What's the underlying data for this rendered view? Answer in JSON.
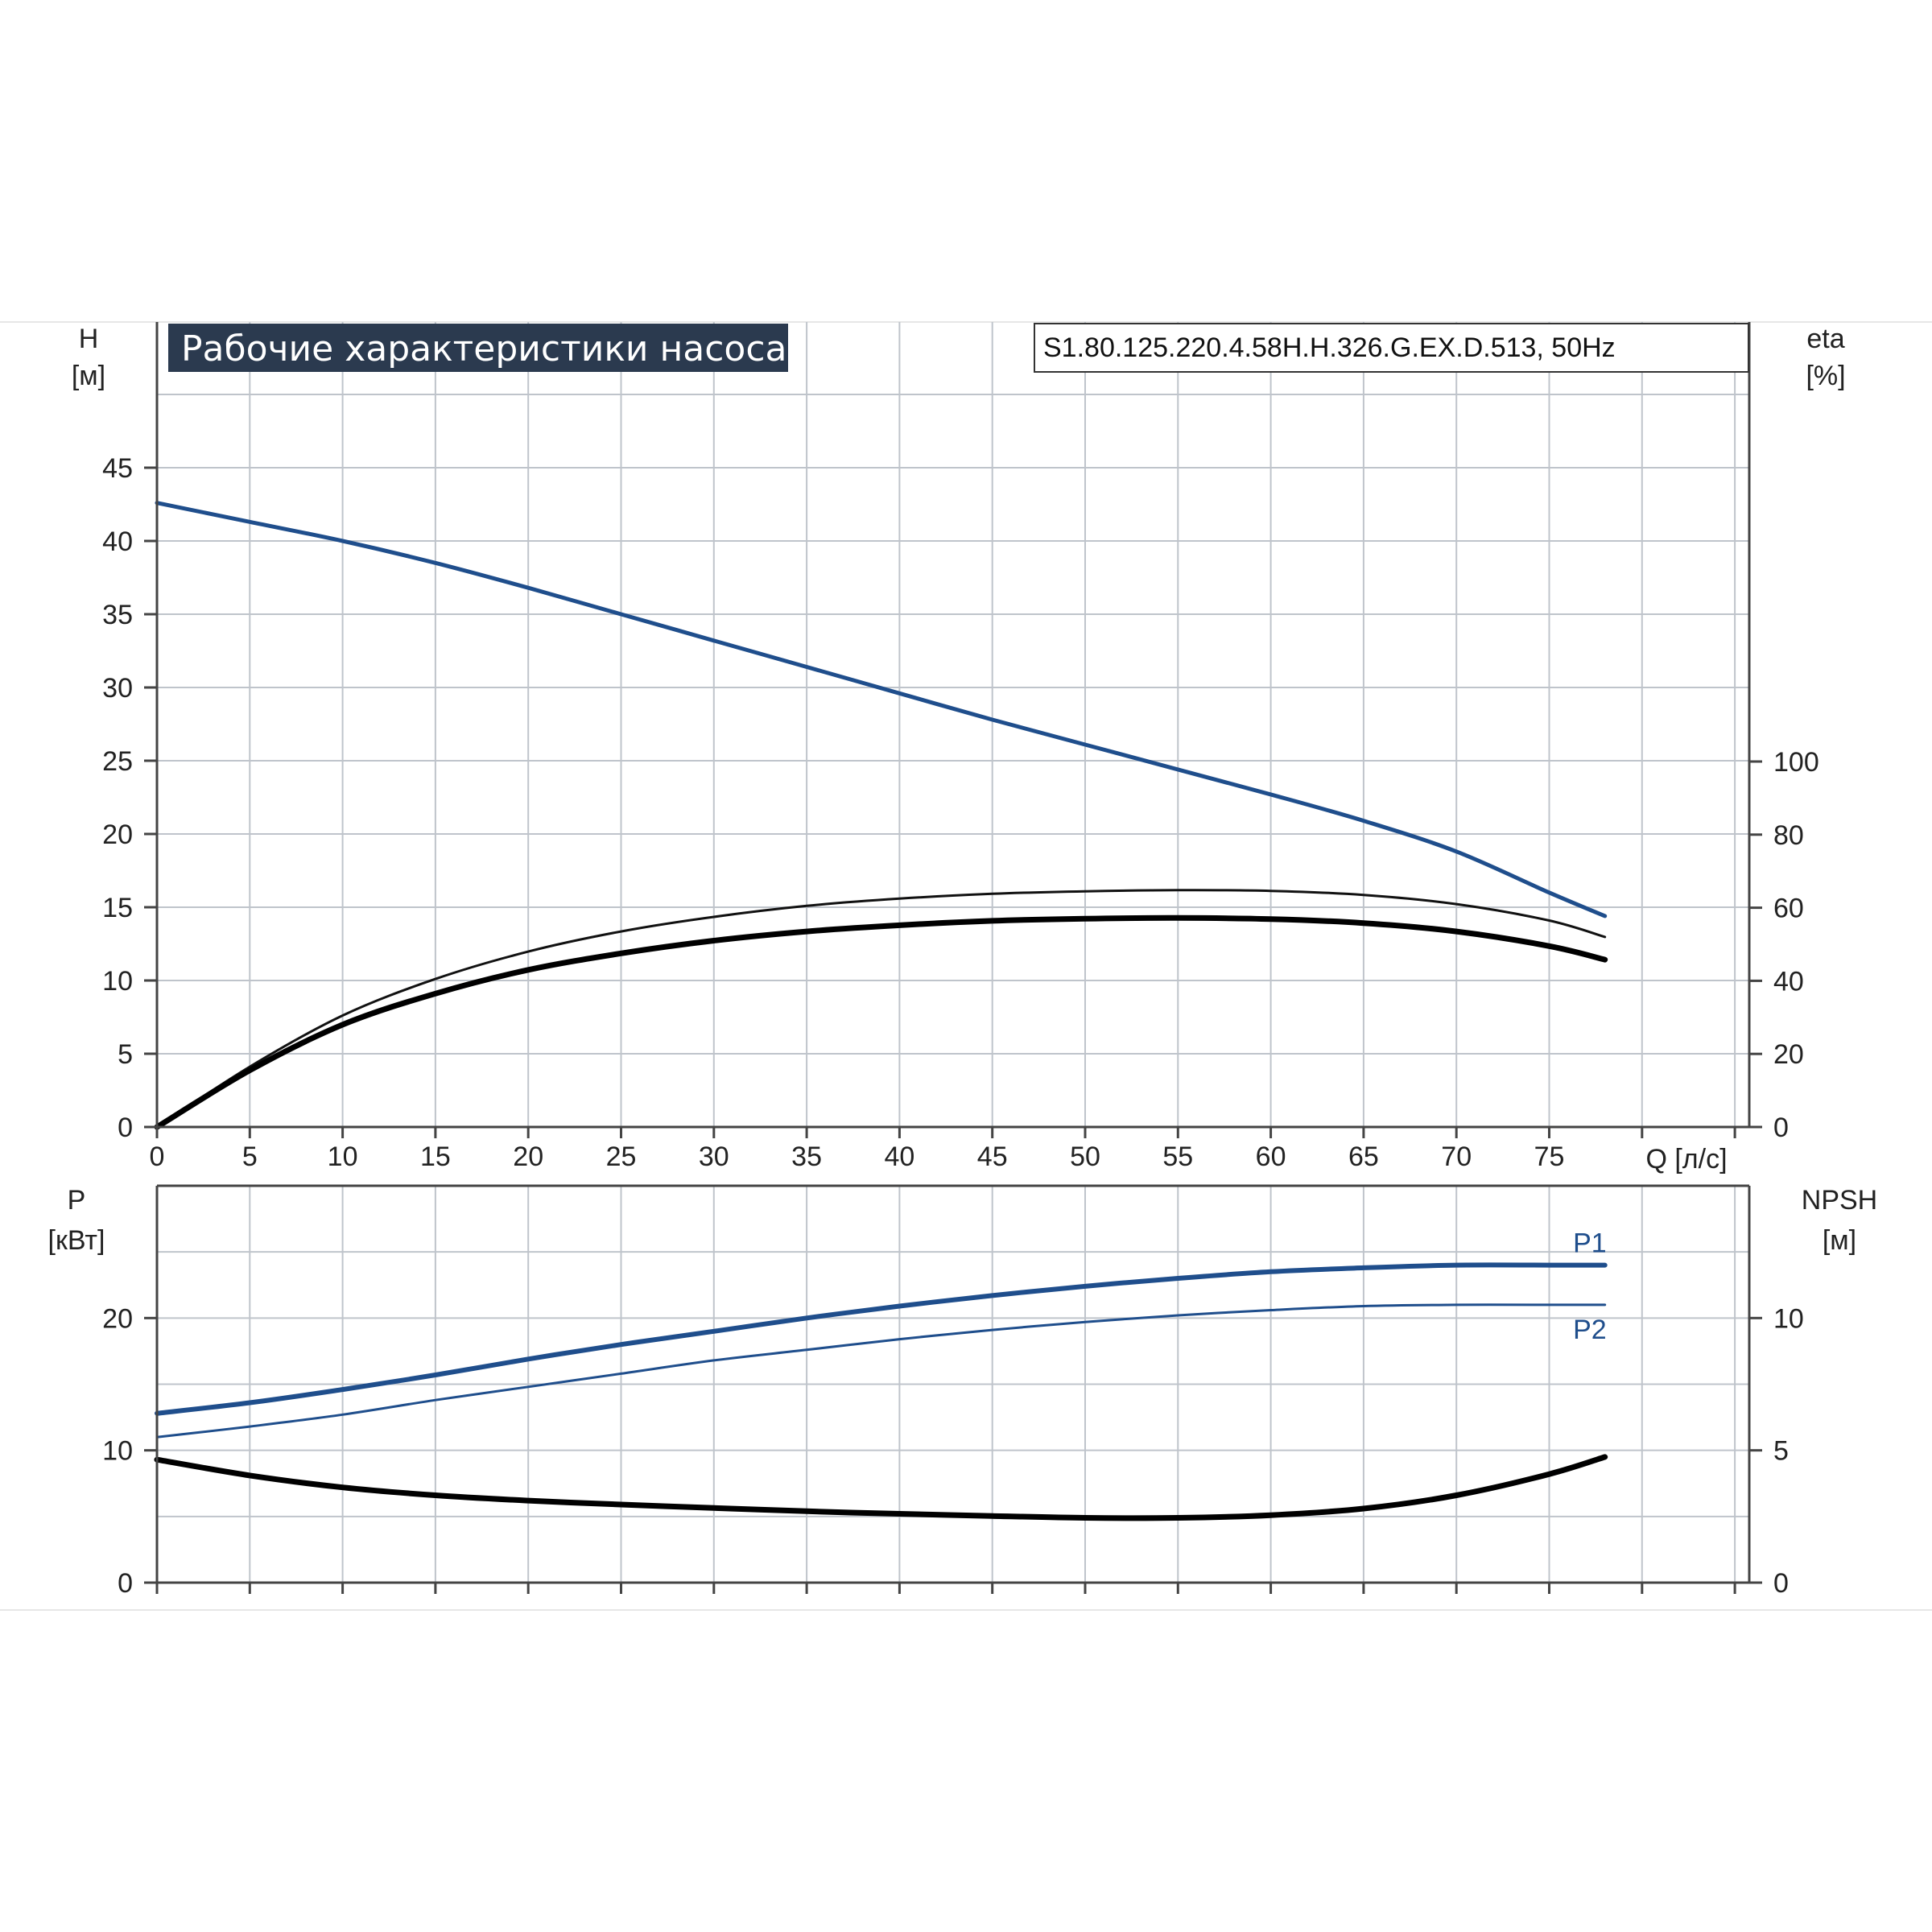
{
  "chart_data": [
    {
      "type": "line",
      "title": "Рабочие характеристики насоса",
      "model": "S1.80.125.220.4.58H.H.326.G.EX.D.513, 50Hz",
      "xlabel": "Q [л/с]",
      "ylabel_left": [
        "H",
        "[м]"
      ],
      "ylabel_right": [
        "eta",
        "[%]"
      ],
      "xlim": [
        0,
        85
      ],
      "xticks": [
        0,
        5,
        10,
        15,
        20,
        25,
        30,
        35,
        40,
        45,
        50,
        55,
        60,
        65,
        70,
        75
      ],
      "ylim_left": [
        0,
        50
      ],
      "yticks_left": [
        0,
        5,
        10,
        15,
        20,
        25,
        30,
        35,
        40,
        45
      ],
      "ylim_right": [
        0,
        100
      ],
      "yticks_right": [
        0,
        20,
        40,
        60,
        80,
        100
      ],
      "grid": true,
      "series": [
        {
          "axis": "left",
          "color": "#1f4e8c",
          "width": 5,
          "x": [
            0,
            5,
            10,
            15,
            20,
            25,
            30,
            35,
            40,
            45,
            50,
            55,
            60,
            65,
            70,
            75,
            78
          ],
          "y": [
            42.6,
            41.3,
            40.0,
            38.5,
            36.8,
            35.0,
            33.2,
            31.4,
            29.6,
            27.8,
            26.1,
            24.4,
            22.7,
            20.9,
            18.8,
            16.0,
            14.4
          ]
        },
        {
          "axis": "right",
          "color": "#111111",
          "width": 3,
          "x": [
            0,
            5,
            10,
            15,
            20,
            25,
            30,
            35,
            40,
            45,
            50,
            55,
            60,
            65,
            70,
            75,
            78
          ],
          "y": [
            0,
            16.5,
            30.5,
            40.5,
            48.0,
            53.5,
            57.5,
            60.5,
            62.5,
            63.8,
            64.5,
            64.8,
            64.6,
            63.5,
            61.0,
            56.5,
            52.0
          ]
        },
        {
          "axis": "right",
          "color": "#000000",
          "width": 7,
          "x": [
            0,
            5,
            10,
            15,
            20,
            25,
            30,
            35,
            40,
            45,
            50,
            55,
            60,
            65,
            70,
            75,
            78
          ],
          "y": [
            0,
            15.5,
            28.0,
            36.5,
            43.0,
            47.5,
            51.0,
            53.5,
            55.2,
            56.4,
            57.0,
            57.2,
            56.9,
            55.8,
            53.5,
            49.5,
            45.8
          ]
        }
      ]
    },
    {
      "type": "line",
      "xlim": [
        0,
        85
      ],
      "ylabel_left": [
        "P",
        "[кВт]"
      ],
      "ylabel_right": [
        "NPSH",
        "[м]"
      ],
      "ylim_left": [
        0,
        30
      ],
      "yticks_left": [
        0,
        10,
        20
      ],
      "ylim_right": [
        0,
        15
      ],
      "yticks_right": [
        0,
        5,
        10
      ],
      "grid": true,
      "series": [
        {
          "name": "P1",
          "axis": "left",
          "color": "#1f4e8c",
          "width": 6,
          "x": [
            0,
            5,
            10,
            15,
            20,
            25,
            30,
            35,
            40,
            45,
            50,
            55,
            60,
            65,
            70,
            75,
            78
          ],
          "y": [
            12.8,
            13.6,
            14.6,
            15.7,
            16.9,
            18.0,
            19.0,
            20.0,
            20.9,
            21.7,
            22.4,
            23.0,
            23.5,
            23.8,
            24.0,
            24.0,
            24.0
          ]
        },
        {
          "name": "P2",
          "axis": "left",
          "color": "#1f4e8c",
          "width": 3,
          "x": [
            0,
            5,
            10,
            15,
            20,
            25,
            30,
            35,
            40,
            45,
            50,
            55,
            60,
            65,
            70,
            75,
            78
          ],
          "y": [
            11.0,
            11.8,
            12.7,
            13.8,
            14.8,
            15.8,
            16.8,
            17.6,
            18.4,
            19.1,
            19.7,
            20.2,
            20.6,
            20.9,
            21.0,
            21.0,
            21.0
          ]
        },
        {
          "axis": "right",
          "color": "#000000",
          "width": 7,
          "x": [
            0,
            5,
            10,
            15,
            20,
            25,
            30,
            35,
            40,
            45,
            50,
            55,
            60,
            65,
            70,
            75,
            78
          ],
          "y": [
            4.65,
            4.05,
            3.6,
            3.3,
            3.1,
            2.95,
            2.82,
            2.7,
            2.6,
            2.52,
            2.45,
            2.45,
            2.55,
            2.8,
            3.3,
            4.1,
            4.75
          ]
        }
      ]
    }
  ]
}
